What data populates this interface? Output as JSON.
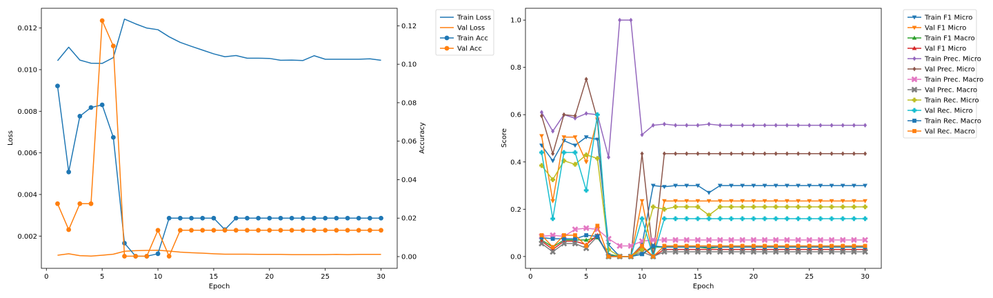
{
  "colors": {
    "blue": "#1f77b4",
    "orange": "#ff7f0e",
    "green": "#2ca02c",
    "red": "#d62728",
    "purple": "#9467bd",
    "brown": "#8c564b",
    "pink": "#e377c2",
    "gray": "#7f7f7f",
    "olive": "#bcbd22",
    "cyan": "#17becf"
  },
  "chart_data": [
    {
      "type": "line",
      "xlabel": "Epoch",
      "ylabel": "Loss",
      "y2label": "Accuracy",
      "xlim": [
        -0.45,
        31.45
      ],
      "ylim": [
        0.00045,
        0.01295
      ],
      "y2lim": [
        -0.0061,
        0.1291
      ],
      "xticks": [
        0,
        5,
        10,
        15,
        20,
        25,
        30
      ],
      "yticks": [
        0.002,
        0.004,
        0.006,
        0.008,
        0.01,
        0.012
      ],
      "ytick_labels": [
        "0.002",
        "0.004",
        "0.006",
        "0.008",
        "0.010",
        "0.012"
      ],
      "y2ticks": [
        0.0,
        0.02,
        0.04,
        0.06,
        0.08,
        0.1,
        0.12
      ],
      "y2tick_labels": [
        "0.00",
        "0.02",
        "0.04",
        "0.06",
        "0.08",
        "0.10",
        "0.12"
      ],
      "legend_position": "outside-right",
      "x": [
        1,
        2,
        3,
        4,
        5,
        6,
        7,
        8,
        9,
        10,
        11,
        12,
        13,
        14,
        15,
        16,
        17,
        18,
        19,
        20,
        21,
        22,
        23,
        24,
        25,
        26,
        27,
        28,
        29,
        30
      ],
      "series": [
        {
          "name": "Train Loss",
          "color": "blue",
          "axis": "left",
          "marker": "none",
          "values": [
            0.01043,
            0.01108,
            0.01046,
            0.01031,
            0.0103,
            0.01058,
            0.01243,
            0.0122,
            0.012,
            0.01192,
            0.01158,
            0.01131,
            0.01112,
            0.01094,
            0.01076,
            0.01062,
            0.01068,
            0.01055,
            0.01055,
            0.01054,
            0.01045,
            0.01046,
            0.01044,
            0.01067,
            0.0105,
            0.0105,
            0.0105,
            0.0105,
            0.01052,
            0.01045
          ]
        },
        {
          "name": "Val Loss",
          "color": "orange",
          "axis": "left",
          "marker": "none",
          "values": [
            0.00108,
            0.00115,
            0.00106,
            0.00104,
            0.00108,
            0.00113,
            0.00127,
            0.0013,
            0.00131,
            0.00132,
            0.00128,
            0.00123,
            0.0012,
            0.00118,
            0.00115,
            0.00113,
            0.00113,
            0.00113,
            0.00112,
            0.00112,
            0.00112,
            0.00111,
            0.00111,
            0.00111,
            0.00111,
            0.00112,
            0.00111,
            0.00112,
            0.00112,
            0.00112
          ]
        },
        {
          "name": "Train Acc",
          "color": "blue",
          "axis": "right",
          "marker": "circle",
          "values": [
            0.0887,
            0.044,
            0.073,
            0.0775,
            0.0789,
            0.062,
            0.007,
            0.0002,
            0.0002,
            0.0015,
            0.02,
            0.02,
            0.02,
            0.02,
            0.02,
            0.014,
            0.02,
            0.02,
            0.02,
            0.02,
            0.02,
            0.02,
            0.02,
            0.02,
            0.02,
            0.02,
            0.02,
            0.02,
            0.02,
            0.02
          ]
        },
        {
          "name": "Val Acc",
          "color": "orange",
          "axis": "right",
          "marker": "circle",
          "values": [
            0.0275,
            0.014,
            0.0275,
            0.0275,
            0.1227,
            0.1095,
            0.0002,
            0.0002,
            0.0002,
            0.0137,
            0.0002,
            0.0137,
            0.0137,
            0.0137,
            0.0137,
            0.0137,
            0.0137,
            0.0137,
            0.0137,
            0.0137,
            0.0137,
            0.0137,
            0.0137,
            0.0137,
            0.0137,
            0.0137,
            0.0137,
            0.0137,
            0.0137,
            0.0137
          ]
        }
      ]
    },
    {
      "type": "line",
      "xlabel": "Epoch",
      "ylabel": "Score",
      "xlim": [
        -0.45,
        31.45
      ],
      "ylim": [
        -0.05,
        1.05
      ],
      "xticks": [
        0,
        5,
        10,
        15,
        20,
        25,
        30
      ],
      "yticks": [
        0.0,
        0.2,
        0.4,
        0.6,
        0.8,
        1.0
      ],
      "ytick_labels": [
        "0.0",
        "0.2",
        "0.4",
        "0.6",
        "0.8",
        "1.0"
      ],
      "legend_position": "outside-right",
      "x": [
        1,
        2,
        3,
        4,
        5,
        6,
        7,
        8,
        9,
        10,
        11,
        12,
        13,
        14,
        15,
        16,
        17,
        18,
        19,
        20,
        21,
        22,
        23,
        24,
        25,
        26,
        27,
        28,
        29,
        30
      ],
      "series": [
        {
          "name": "Train F1 Micro",
          "color": "blue",
          "marker": "triangle-down",
          "values": [
            0.47,
            0.405,
            0.49,
            0.47,
            0.505,
            0.495,
            0.05,
            0.0,
            0.0,
            0.05,
            0.3,
            0.295,
            0.3,
            0.3,
            0.3,
            0.27,
            0.3,
            0.3,
            0.3,
            0.3,
            0.3,
            0.3,
            0.3,
            0.3,
            0.3,
            0.3,
            0.3,
            0.3,
            0.3,
            0.3
          ]
        },
        {
          "name": "Val F1 Micro",
          "color": "orange",
          "marker": "triangle-down",
          "values": [
            0.51,
            0.235,
            0.505,
            0.505,
            0.4,
            0.58,
            0.0,
            0.0,
            0.0,
            0.235,
            0.0,
            0.235,
            0.235,
            0.235,
            0.235,
            0.235,
            0.235,
            0.235,
            0.235,
            0.235,
            0.235,
            0.235,
            0.235,
            0.235,
            0.235,
            0.235,
            0.235,
            0.235,
            0.235,
            0.235
          ]
        },
        {
          "name": "Train F1 Macro",
          "color": "green",
          "marker": "triangle-up",
          "values": [
            0.07,
            0.04,
            0.07,
            0.07,
            0.07,
            0.08,
            0.01,
            0.0,
            0.0,
            0.01,
            0.04,
            0.04,
            0.04,
            0.04,
            0.04,
            0.035,
            0.04,
            0.04,
            0.04,
            0.04,
            0.04,
            0.04,
            0.04,
            0.04,
            0.04,
            0.04,
            0.04,
            0.04,
            0.04,
            0.04
          ]
        },
        {
          "name": "Val F1 Micro",
          "color": "red",
          "marker": "triangle-up",
          "values": [
            0.065,
            0.03,
            0.065,
            0.065,
            0.05,
            0.09,
            0.0,
            0.0,
            0.0,
            0.04,
            0.0,
            0.03,
            0.03,
            0.03,
            0.03,
            0.03,
            0.03,
            0.03,
            0.03,
            0.03,
            0.03,
            0.03,
            0.03,
            0.03,
            0.03,
            0.03,
            0.03,
            0.03,
            0.03,
            0.03
          ]
        },
        {
          "name": "Train Prec. Micro",
          "color": "purple",
          "marker": "diamond",
          "values": [
            0.61,
            0.53,
            0.6,
            0.585,
            0.605,
            0.6,
            0.42,
            1.0,
            1.0,
            0.515,
            0.555,
            0.56,
            0.555,
            0.555,
            0.555,
            0.56,
            0.555,
            0.555,
            0.555,
            0.555,
            0.555,
            0.555,
            0.555,
            0.555,
            0.555,
            0.555,
            0.555,
            0.555,
            0.555,
            0.555
          ]
        },
        {
          "name": "Val Prec. Micro",
          "color": "brown",
          "marker": "diamond",
          "values": [
            0.595,
            0.435,
            0.6,
            0.595,
            0.75,
            0.58,
            0.0,
            0.0,
            0.0,
            0.435,
            0.0,
            0.435,
            0.435,
            0.435,
            0.435,
            0.435,
            0.435,
            0.435,
            0.435,
            0.435,
            0.435,
            0.435,
            0.435,
            0.435,
            0.435,
            0.435,
            0.435,
            0.435,
            0.435,
            0.435
          ]
        },
        {
          "name": "Train Prec. Macro",
          "color": "pink",
          "marker": "x",
          "values": [
            0.085,
            0.09,
            0.085,
            0.115,
            0.12,
            0.115,
            0.075,
            0.045,
            0.045,
            0.065,
            0.07,
            0.07,
            0.07,
            0.07,
            0.07,
            0.07,
            0.07,
            0.07,
            0.07,
            0.07,
            0.07,
            0.07,
            0.07,
            0.07,
            0.07,
            0.07,
            0.07,
            0.07,
            0.07,
            0.07
          ]
        },
        {
          "name": "Val Prec. Macro",
          "color": "gray",
          "marker": "x",
          "values": [
            0.055,
            0.02,
            0.055,
            0.055,
            0.035,
            0.085,
            0.0,
            0.0,
            0.0,
            0.02,
            0.0,
            0.02,
            0.02,
            0.02,
            0.02,
            0.02,
            0.02,
            0.02,
            0.02,
            0.02,
            0.02,
            0.02,
            0.02,
            0.02,
            0.02,
            0.02,
            0.02,
            0.02,
            0.02,
            0.02
          ]
        },
        {
          "name": "Train Rec. Micro",
          "color": "olive",
          "marker": "plus",
          "values": [
            0.385,
            0.325,
            0.405,
            0.39,
            0.43,
            0.415,
            0.03,
            0.0,
            0.0,
            0.03,
            0.21,
            0.2,
            0.21,
            0.21,
            0.21,
            0.175,
            0.21,
            0.21,
            0.21,
            0.21,
            0.21,
            0.21,
            0.21,
            0.21,
            0.21,
            0.21,
            0.21,
            0.21,
            0.21,
            0.21
          ]
        },
        {
          "name": "Val Rec. Micro",
          "color": "cyan",
          "marker": "plus",
          "values": [
            0.44,
            0.16,
            0.44,
            0.44,
            0.28,
            0.6,
            0.0,
            0.0,
            0.0,
            0.16,
            0.0,
            0.16,
            0.16,
            0.16,
            0.16,
            0.16,
            0.16,
            0.16,
            0.16,
            0.16,
            0.16,
            0.16,
            0.16,
            0.16,
            0.16,
            0.16,
            0.16,
            0.16,
            0.16,
            0.16
          ]
        },
        {
          "name": "Train Rec. Macro",
          "color": "blue",
          "marker": "square",
          "values": [
            0.08,
            0.075,
            0.075,
            0.075,
            0.09,
            0.085,
            0.005,
            0.0,
            0.0,
            0.01,
            0.045,
            0.04,
            0.04,
            0.04,
            0.04,
            0.04,
            0.04,
            0.04,
            0.04,
            0.04,
            0.04,
            0.04,
            0.04,
            0.04,
            0.04,
            0.04,
            0.04,
            0.04,
            0.04,
            0.04
          ]
        },
        {
          "name": "Val Rec. Macro",
          "color": "orange",
          "marker": "square",
          "values": [
            0.09,
            0.04,
            0.09,
            0.09,
            0.045,
            0.13,
            0.0,
            0.0,
            0.0,
            0.045,
            0.0,
            0.045,
            0.045,
            0.045,
            0.045,
            0.045,
            0.045,
            0.045,
            0.045,
            0.045,
            0.045,
            0.045,
            0.045,
            0.045,
            0.045,
            0.045,
            0.045,
            0.045,
            0.045,
            0.045
          ]
        }
      ]
    }
  ]
}
